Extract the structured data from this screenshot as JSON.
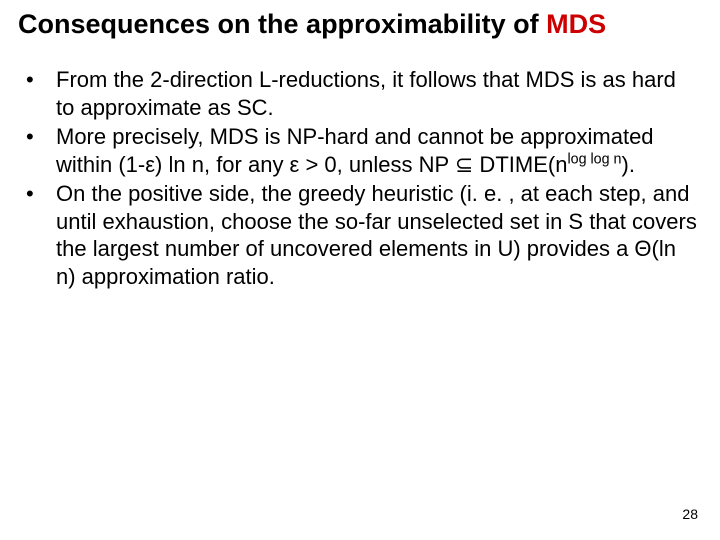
{
  "title_prefix": "Consequences on the approximability of ",
  "title_accent": "MDS",
  "bullets": [
    {
      "text_html": "From the 2-direction L-reductions, it follows that MDS is as hard to approximate as SC."
    },
    {
      "text_html": "More precisely, MDS is NP-hard and cannot be approximated within (1-ε) ln n,  for any ε > 0, unless NP ⊆ DTIME(n<span class=\"sup\">log log n</span>)."
    },
    {
      "text_html": "On the positive side, the greedy heuristic (i. e. , at each step, and until exhaustion, choose the so-far unselected set in S that covers the largest number of uncovered elements in U) provides a Θ(ln n) approximation ratio."
    }
  ],
  "page_number": "28",
  "colors": {
    "accent": "#cc0000",
    "text": "#000000",
    "background": "#ffffff"
  },
  "typography": {
    "title_fontsize": 27,
    "body_fontsize": 22,
    "pagenum_fontsize": 14,
    "font_family": "Comic Sans MS"
  }
}
